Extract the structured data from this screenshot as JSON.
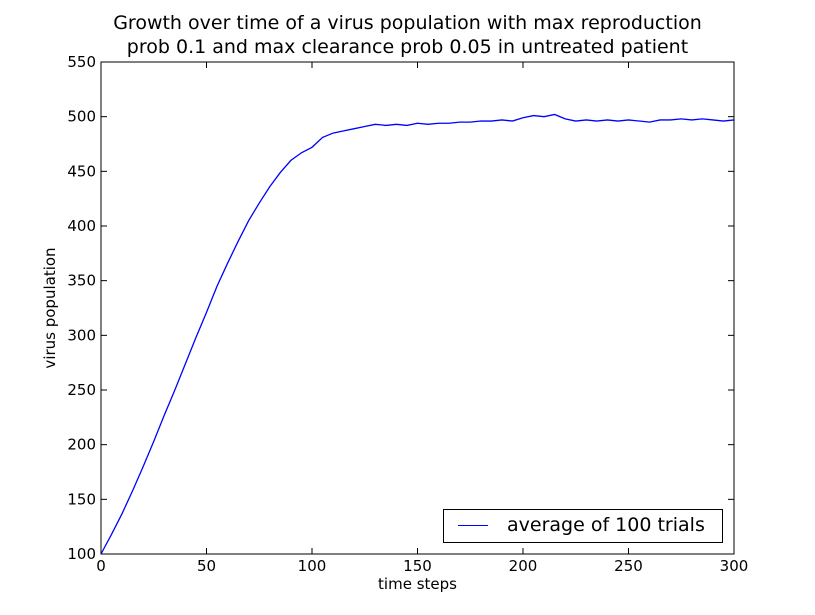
{
  "chart_data": {
    "type": "line",
    "title_line1": "Growth over time of a virus population with max reproduction",
    "title_line2": "prob 0.1 and max clearance prob 0.05 in untreated patient",
    "xlabel": "time steps",
    "ylabel": "virus population",
    "xlim": [
      0,
      300
    ],
    "ylim": [
      100,
      550
    ],
    "xticks": [
      0,
      50,
      100,
      150,
      200,
      250,
      300
    ],
    "yticks": [
      100,
      150,
      200,
      250,
      300,
      350,
      400,
      450,
      500,
      550
    ],
    "grid": false,
    "legend_position": "lower-right",
    "series": [
      {
        "name": "average of 100 trials",
        "color": "#0000ff",
        "x": [
          0,
          5,
          10,
          15,
          20,
          25,
          30,
          35,
          40,
          45,
          50,
          55,
          60,
          65,
          70,
          75,
          80,
          85,
          90,
          95,
          100,
          105,
          110,
          115,
          120,
          125,
          130,
          135,
          140,
          145,
          150,
          155,
          160,
          165,
          170,
          175,
          180,
          185,
          190,
          195,
          200,
          205,
          210,
          215,
          220,
          225,
          230,
          235,
          240,
          245,
          250,
          255,
          260,
          265,
          270,
          275,
          280,
          285,
          290,
          295,
          300
        ],
        "values": [
          100,
          118,
          137,
          158,
          180,
          203,
          227,
          250,
          274,
          298,
          321,
          345,
          366,
          386,
          405,
          421,
          436,
          449,
          460,
          467,
          472,
          481,
          485,
          487,
          489,
          491,
          493,
          492,
          493,
          492,
          494,
          493,
          494,
          494,
          495,
          495,
          496,
          496,
          497,
          496,
          499,
          501,
          500,
          502,
          498,
          496,
          497,
          496,
          497,
          496,
          497,
          496,
          495,
          497,
          497,
          498,
          497,
          498,
          497,
          496,
          497
        ]
      }
    ]
  }
}
